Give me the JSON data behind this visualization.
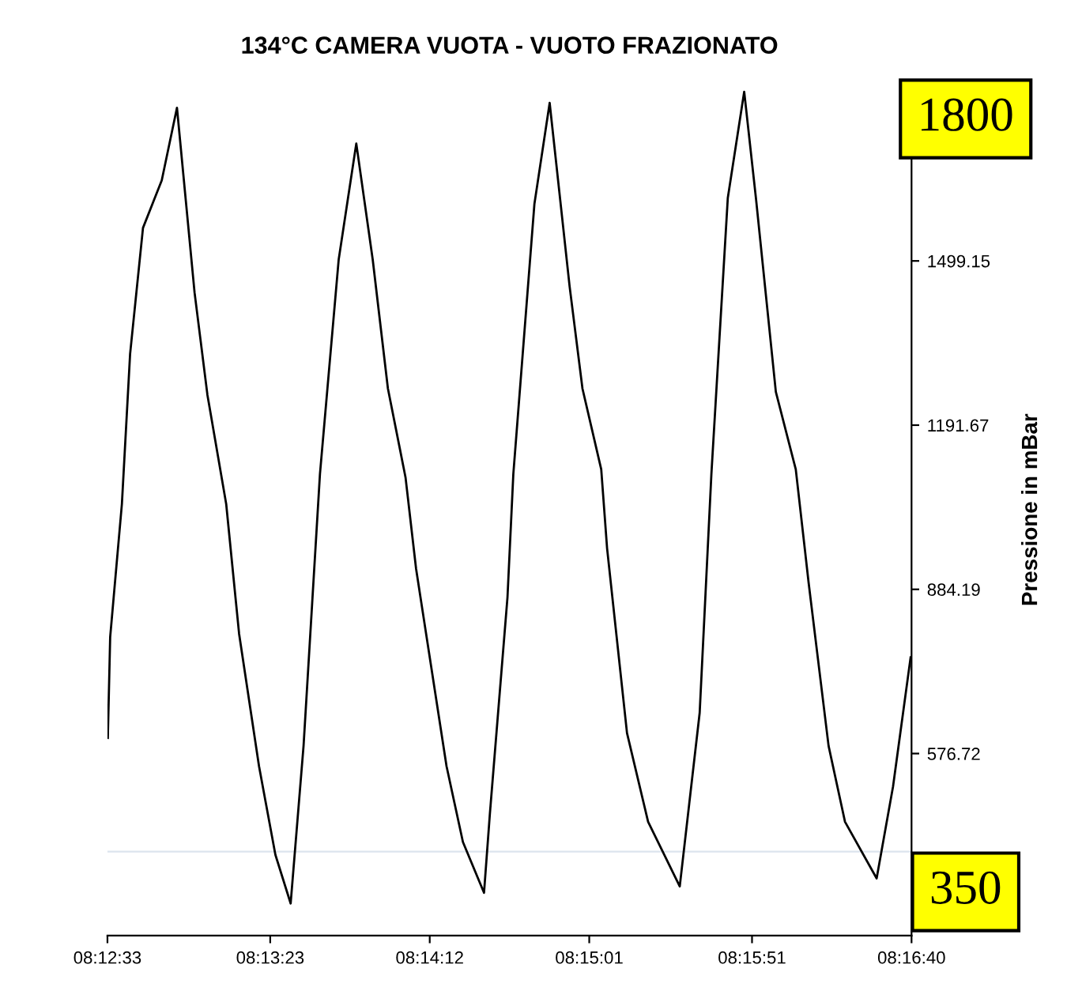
{
  "chart_data": {
    "type": "line",
    "title": "134°C CAMERA VUOTA - VUOTO FRAZIONATO",
    "ylabel": "Pressione in mBar",
    "x": [
      8.2092,
      8.2094,
      8.2104,
      8.2111,
      8.2122,
      8.2138,
      8.2151,
      8.2166,
      8.2177,
      8.2193,
      8.2204,
      8.2221,
      8.2235,
      8.2248,
      8.2259,
      8.2273,
      8.2289,
      8.2304,
      8.2318,
      8.2331,
      8.2346,
      8.2355,
      8.2381,
      8.2395,
      8.2413,
      8.2418,
      8.2433,
      8.2438,
      8.2456,
      8.2469,
      8.2486,
      8.2497,
      8.2513,
      8.2518,
      8.2535,
      8.2553,
      8.258,
      8.2597,
      8.2607,
      8.2621,
      8.2635,
      8.2645,
      8.2662,
      8.2679,
      8.269,
      8.2707,
      8.2721,
      8.2748,
      8.2762,
      8.2777
    ],
    "series": [
      {
        "color": "#000000",
        "values": [
          606,
          795,
          1044,
          1325,
          1561,
          1650,
          1786,
          1440,
          1248,
          1044,
          801,
          553,
          387,
          296,
          591,
          1100,
          1502,
          1719,
          1502,
          1260,
          1094,
          923,
          553,
          411,
          316,
          464,
          869,
          1100,
          1606,
          1795,
          1452,
          1260,
          1109,
          961,
          615,
          449,
          328,
          653,
          1100,
          1617,
          1816,
          1617,
          1254,
          1109,
          896,
          591,
          449,
          343,
          515,
          757
        ]
      }
    ],
    "xlim": [
      8.209167,
      8.277778
    ],
    "xticks": [
      {
        "value": 8.209167,
        "label": "08:12:33"
      },
      {
        "value": 8.223056,
        "label": "08:13:23"
      },
      {
        "value": 8.236667,
        "label": "08:14:12"
      },
      {
        "value": 8.250278,
        "label": "08:15:01"
      },
      {
        "value": 8.264167,
        "label": "08:15:51"
      },
      {
        "value": 8.277778,
        "label": "08:16:40"
      }
    ],
    "ylim": [
      236,
      1830
    ],
    "yticks": [
      576.72,
      884.19,
      1191.67,
      1499.15
    ],
    "ref_lines": [
      {
        "axis": "y",
        "value": 393,
        "color": "#dce4ee"
      }
    ],
    "annotations": [
      "1800",
      "350"
    ],
    "grid": false,
    "legend": false,
    "marker": "none",
    "line_style": "solid"
  }
}
